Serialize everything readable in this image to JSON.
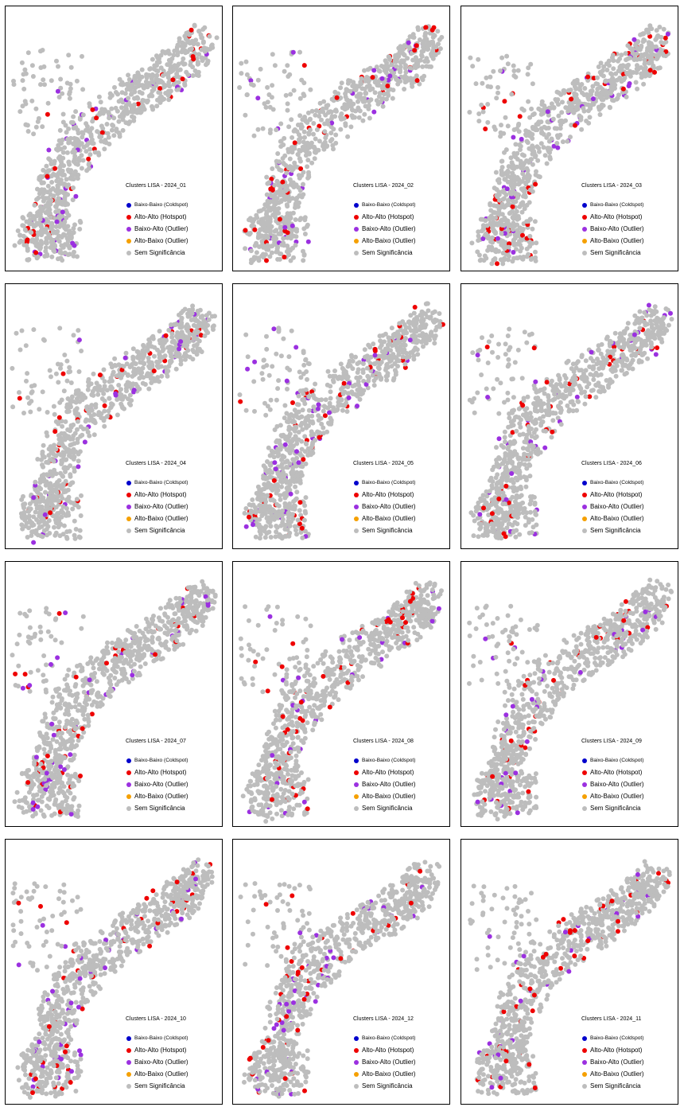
{
  "colors": {
    "coldspot": "#0000cc",
    "hotspot": "#ee0000",
    "low_high": "#9b30e0",
    "high_low": "#f5a000",
    "not_significant": "#bdbdbd"
  },
  "legend_items": [
    {
      "label": "Baixo-Baixo (Coldspot)",
      "color_key": "coldspot"
    },
    {
      "label": "Alto-Alto (Hotspot)",
      "color_key": "hotspot"
    },
    {
      "label": "Baixo-Alto (Outlier)",
      "color_key": "low_high"
    },
    {
      "label": "Alto-Baixo (Outlier)",
      "color_key": "high_low"
    },
    {
      "label": "Sem Significância",
      "color_key": "not_significant"
    }
  ],
  "panels": [
    {
      "title": "Clusters LISA - 2024_01"
    },
    {
      "title": "Clusters LISA - 2024_02"
    },
    {
      "title": "Clusters LISA - 2024_03"
    },
    {
      "title": "Clusters LISA - 2024_04"
    },
    {
      "title": "Clusters LISA - 2024_05"
    },
    {
      "title": "Clusters LISA - 2024_06"
    },
    {
      "title": "Clusters LISA - 2024_07"
    },
    {
      "title": "Clusters LISA - 2024_08"
    },
    {
      "title": "Clusters LISA - 2024_09"
    },
    {
      "title": "Clusters LISA - 2024_10"
    },
    {
      "title": "Clusters LISA - 2024_12"
    },
    {
      "title": "Clusters LISA - 2024_11"
    }
  ]
}
